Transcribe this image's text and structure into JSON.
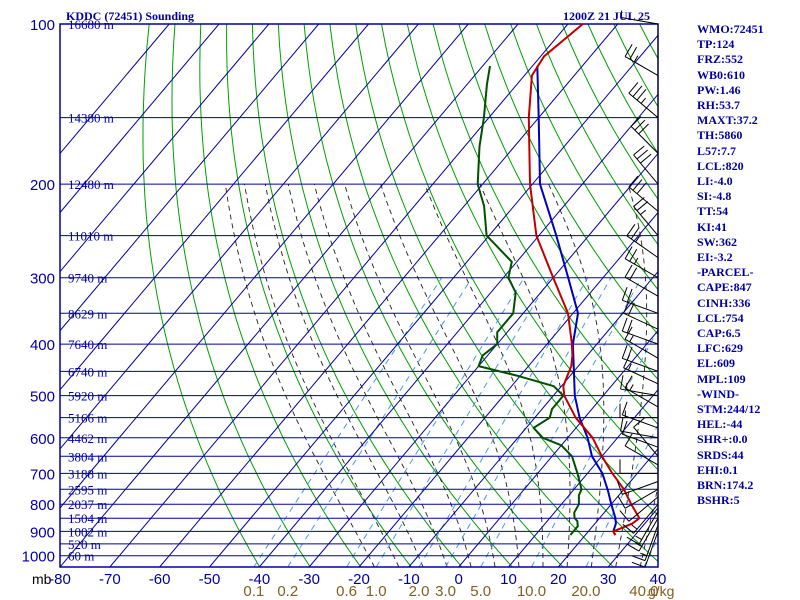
{
  "header": {
    "title_left": "KDDC (72451) Sounding",
    "title_right": "1200Z 21 JUL 25"
  },
  "colors": {
    "frame": "#0000a0",
    "isotherm": "#0000a0",
    "dry_adiabat": "#00a000",
    "moist_adiabat": "#202020",
    "mixing_ratio": "#4a9ae6",
    "temperature": "#c00000",
    "dewpoint": "#005000",
    "parcel": "#0000c0",
    "mixing_ratio_labels": "#806020",
    "wind_barbs": "#000000"
  },
  "chart_data": {
    "type": "skew-t",
    "axes": {
      "pressure_unit_label": "mb",
      "pressure_ticks_mb": [
        "100",
        "200",
        "300",
        "400",
        "500",
        "600",
        "700",
        "800",
        "900",
        "1000"
      ],
      "temperature_ticks_c": [
        "-80",
        "-70",
        "-60",
        "-50",
        "-40",
        "-30",
        "-20",
        "-10",
        "0",
        "10",
        "20",
        "30",
        "40"
      ],
      "mixing_ratio_ticks_gkg": [
        "0.1",
        "0.2",
        "0.6",
        "1.0",
        "2.0",
        "3.0",
        "5.0",
        "10.0",
        "20.0",
        "40.0"
      ],
      "mixing_ratio_unit": "g/kg",
      "pressure_range_mb": [
        100,
        1050
      ],
      "temperature_range_c": [
        -80,
        40
      ]
    },
    "height_labels": [
      {
        "p": 100,
        "text": "16680 m"
      },
      {
        "p": 150,
        "text": "14380 m"
      },
      {
        "p": 200,
        "text": "12480 m"
      },
      {
        "p": 250,
        "text": "11010 m"
      },
      {
        "p": 300,
        "text": "9740 m"
      },
      {
        "p": 350,
        "text": "8629 m"
      },
      {
        "p": 400,
        "text": "7640 m"
      },
      {
        "p": 450,
        "text": "6740 m"
      },
      {
        "p": 500,
        "text": "5920 m"
      },
      {
        "p": 550,
        "text": "5166 m"
      },
      {
        "p": 600,
        "text": "4462 m"
      },
      {
        "p": 650,
        "text": "3804 m"
      },
      {
        "p": 700,
        "text": "3188 m"
      },
      {
        "p": 750,
        "text": "2595 m"
      },
      {
        "p": 800,
        "text": "2037 m"
      },
      {
        "p": 850,
        "text": "1504 m"
      },
      {
        "p": 900,
        "text": "1002 m"
      },
      {
        "p": 950,
        "text": "520 m"
      },
      {
        "p": 1000,
        "text": "60 m"
      }
    ],
    "temperature_profile": [
      [
        914,
        26.0
      ],
      [
        900,
        25.0
      ],
      [
        870,
        27.5
      ],
      [
        850,
        28.0
      ],
      [
        800,
        24.0
      ],
      [
        750,
        20.0
      ],
      [
        700,
        15.0
      ],
      [
        650,
        10.0
      ],
      [
        600,
        5.0
      ],
      [
        550,
        -1.8
      ],
      [
        500,
        -7.8
      ],
      [
        480,
        -9.6
      ],
      [
        460,
        -10.5
      ],
      [
        440,
        -11.4
      ],
      [
        420,
        -13.0
      ],
      [
        400,
        -15.0
      ],
      [
        350,
        -21.0
      ],
      [
        300,
        -30.0
      ],
      [
        250,
        -40.5
      ],
      [
        200,
        -50.5
      ],
      [
        170,
        -57.0
      ],
      [
        150,
        -62.0
      ],
      [
        125,
        -68.5
      ],
      [
        115,
        -69.3
      ],
      [
        100,
        -67.0
      ]
    ],
    "dewpoint_profile": [
      [
        914,
        17.0
      ],
      [
        900,
        17.0
      ],
      [
        880,
        17.0
      ],
      [
        860,
        16.0
      ],
      [
        850,
        15.0
      ],
      [
        830,
        14.0
      ],
      [
        800,
        13.5
      ],
      [
        770,
        12.0
      ],
      [
        750,
        11.5
      ],
      [
        700,
        8.0
      ],
      [
        650,
        4.0
      ],
      [
        620,
        0.0
      ],
      [
        600,
        -5.0
      ],
      [
        575,
        -8.5
      ],
      [
        550,
        -7.0
      ],
      [
        530,
        -8.0
      ],
      [
        500,
        -8.0
      ],
      [
        480,
        -11.5
      ],
      [
        460,
        -20.0
      ],
      [
        440,
        -30.0
      ],
      [
        420,
        -31.0
      ],
      [
        400,
        -30.0
      ],
      [
        380,
        -32.0
      ],
      [
        350,
        -32.0
      ],
      [
        320,
        -35.0
      ],
      [
        300,
        -39.0
      ],
      [
        280,
        -41.0
      ],
      [
        250,
        -50.5
      ],
      [
        220,
        -56.0
      ],
      [
        200,
        -61.0
      ],
      [
        170,
        -67.0
      ],
      [
        150,
        -71.0
      ],
      [
        130,
        -76.0
      ],
      [
        120,
        -78.5
      ]
    ],
    "parcel_profile": [
      [
        914,
        26.0
      ],
      [
        900,
        25.0
      ],
      [
        870,
        24.2
      ],
      [
        850,
        23.2
      ],
      [
        800,
        20.0
      ],
      [
        754,
        17.0
      ],
      [
        700,
        13.0
      ],
      [
        650,
        8.0
      ],
      [
        600,
        4.0
      ],
      [
        550,
        -1.0
      ],
      [
        500,
        -5.7
      ],
      [
        400,
        -14.8
      ],
      [
        350,
        -19.0
      ],
      [
        300,
        -27.0
      ],
      [
        250,
        -36.5
      ],
      [
        200,
        -48.5
      ],
      [
        150,
        -60.0
      ],
      [
        120,
        -69.0
      ]
    ],
    "wind_barbs": [
      {
        "p": 100,
        "dir": 80,
        "spd": 5
      },
      {
        "p": 125,
        "dir": 60,
        "spd": 25
      },
      {
        "p": 150,
        "dir": 50,
        "spd": 35
      },
      {
        "p": 175,
        "dir": 45,
        "spd": 30
      },
      {
        "p": 200,
        "dir": 40,
        "spd": 30
      },
      {
        "p": 225,
        "dir": 50,
        "spd": 30
      },
      {
        "p": 250,
        "dir": 40,
        "spd": 25
      },
      {
        "p": 275,
        "dir": 55,
        "spd": 25
      },
      {
        "p": 300,
        "dir": 60,
        "spd": 25
      },
      {
        "p": 325,
        "dir": 60,
        "spd": 20
      },
      {
        "p": 350,
        "dir": 70,
        "spd": 20
      },
      {
        "p": 375,
        "dir": 65,
        "spd": 20
      },
      {
        "p": 400,
        "dir": 70,
        "spd": 20
      },
      {
        "p": 425,
        "dir": 60,
        "spd": 15
      },
      {
        "p": 450,
        "dir": 70,
        "spd": 20
      },
      {
        "p": 475,
        "dir": 65,
        "spd": 15
      },
      {
        "p": 500,
        "dir": 80,
        "spd": 15
      },
      {
        "p": 525,
        "dir": 60,
        "spd": 15
      },
      {
        "p": 550,
        "dir": 90,
        "spd": 15
      },
      {
        "p": 575,
        "dir": 70,
        "spd": 10
      },
      {
        "p": 600,
        "dir": 80,
        "spd": 10
      },
      {
        "p": 625,
        "dir": 70,
        "spd": 10
      },
      {
        "p": 650,
        "dir": 40,
        "spd": 10
      },
      {
        "p": 675,
        "dir": 60,
        "spd": 10
      },
      {
        "p": 700,
        "dir": 90,
        "spd": 10
      },
      {
        "p": 725,
        "dir": 110,
        "spd": 10
      },
      {
        "p": 750,
        "dir": 120,
        "spd": 10
      },
      {
        "p": 775,
        "dir": 130,
        "spd": 10
      },
      {
        "p": 800,
        "dir": 140,
        "spd": 15
      },
      {
        "p": 825,
        "dir": 150,
        "spd": 15
      },
      {
        "p": 850,
        "dir": 150,
        "spd": 15
      },
      {
        "p": 875,
        "dir": 160,
        "spd": 15
      },
      {
        "p": 900,
        "dir": 160,
        "spd": 10
      }
    ]
  },
  "indices": [
    "WMO:72451",
    "TP:124",
    "FRZ:552",
    "WB0:610",
    "PW:1.46",
    "RH:53.7",
    "MAXT:37.2",
    "TH:5860",
    "L57:7.7",
    "LCL:820",
    "LI:-4.0",
    "SI:-4.8",
    "TT:54",
    "KI:41",
    "SW:362",
    "EI:-3.2",
    "-PARCEL-",
    "CAPE:847",
    "CINH:336",
    "LCL:754",
    "CAP:6.5",
    "LFC:629",
    "EL:609",
    "MPL:109",
    "-WIND-",
    "STM:244/12",
    "HEL:-44",
    "SHR+:0.0",
    "SRDS:44",
    "EHI:0.1",
    "BRN:174.2",
    "BSHR:5"
  ]
}
